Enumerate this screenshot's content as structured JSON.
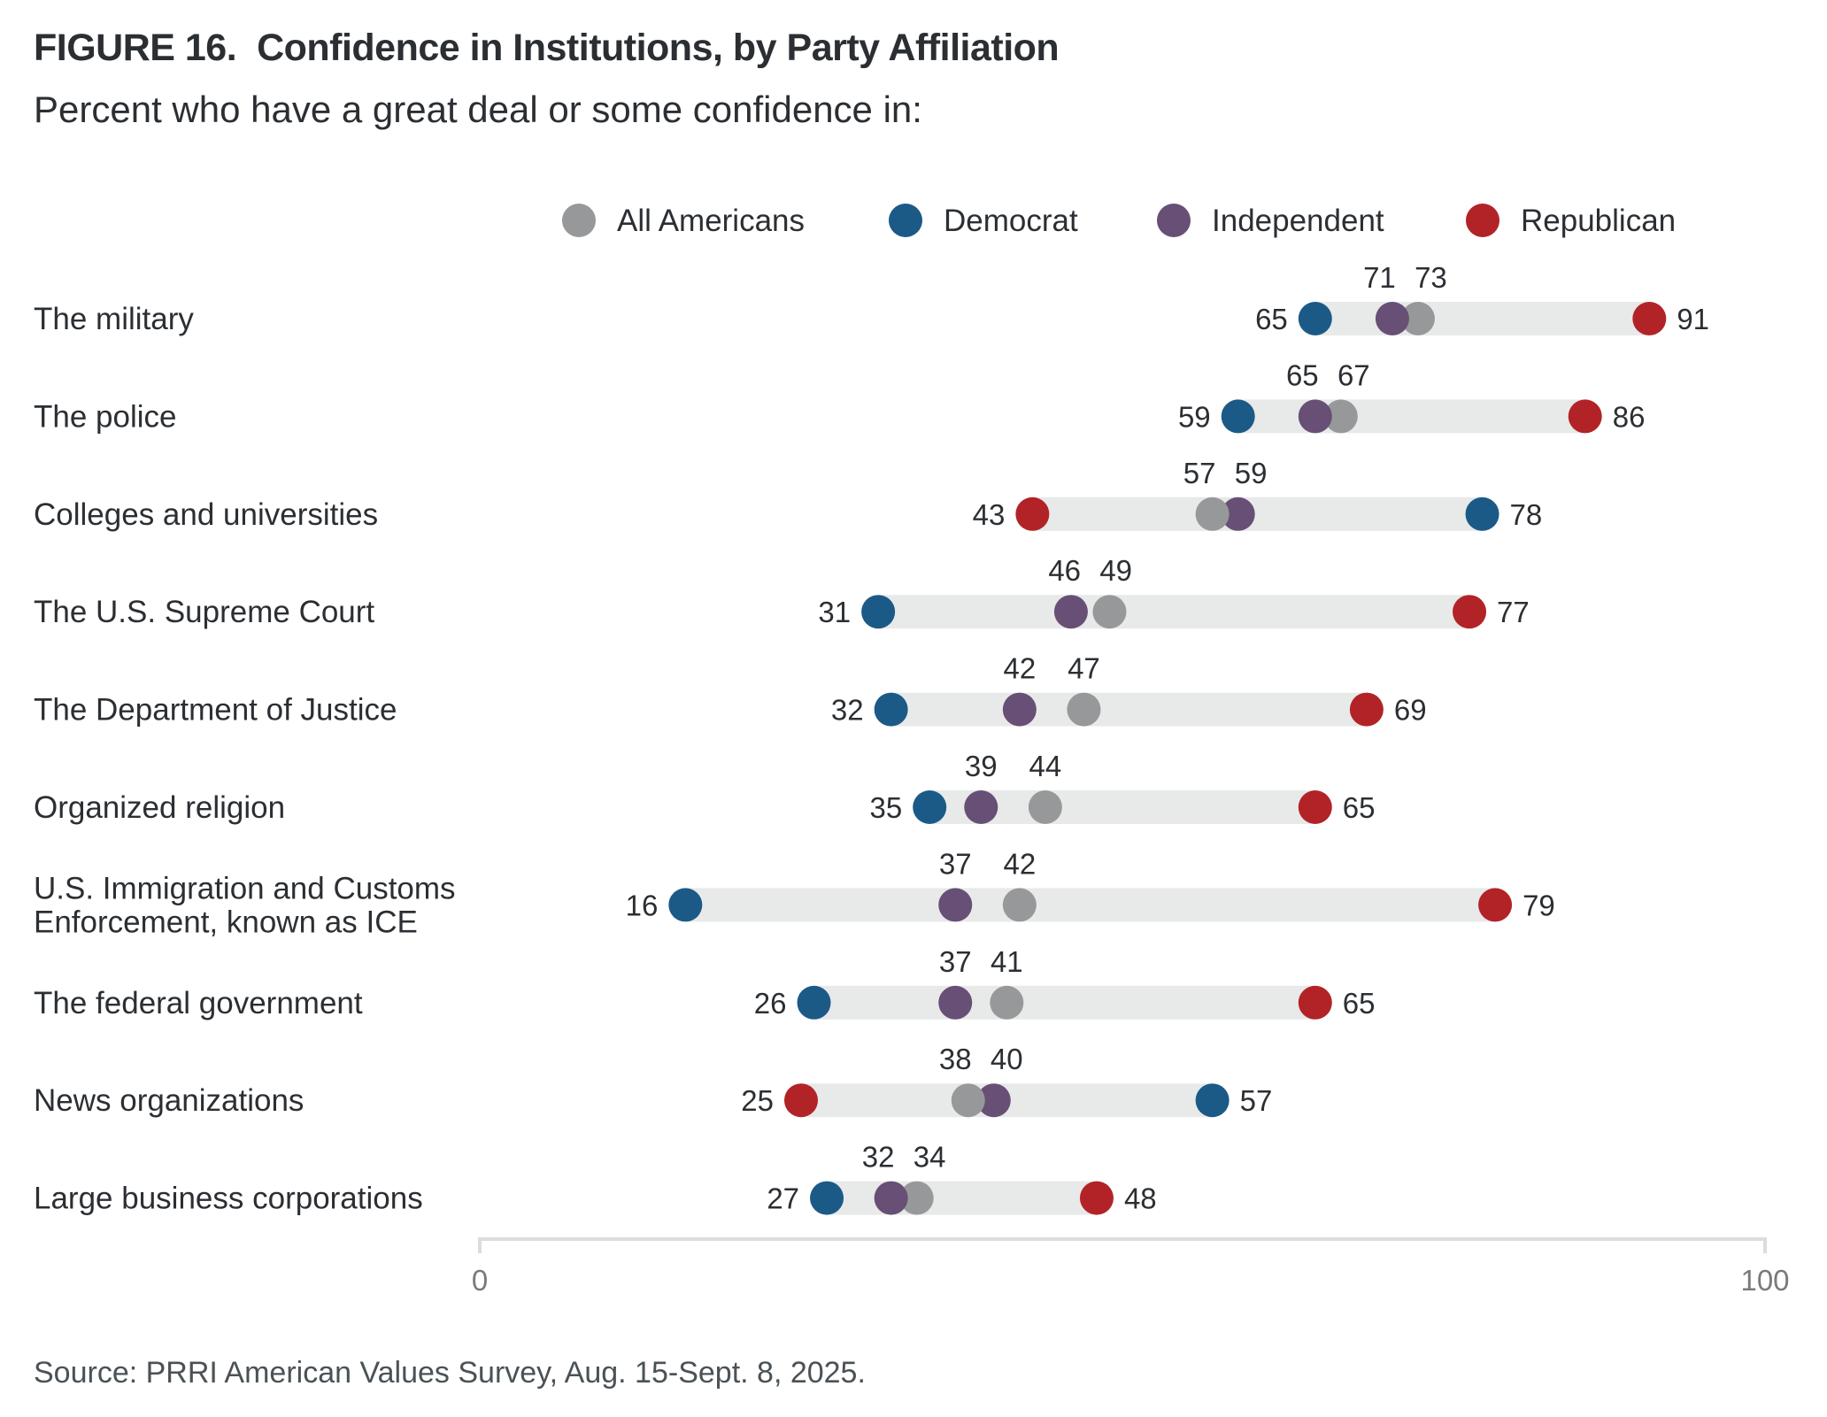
{
  "header": {
    "title": "FIGURE 16.  Confidence in Institutions, by Party Affiliation",
    "subtitle": "Percent who have a great deal or some confidence in:"
  },
  "footer": {
    "source": "Source: PRRI American Values Survey, Aug. 15-Sept. 8, 2025."
  },
  "chart_data": {
    "type": "dot-range",
    "title": "FIGURE 16.  Confidence in Institutions, by Party Affiliation",
    "subtitle": "Percent who have a great deal or some confidence in:",
    "xlim": [
      0,
      100
    ],
    "x_ticks": [
      "0",
      "100"
    ],
    "grid": false,
    "legend_position": "top",
    "series": [
      {
        "key": "all",
        "name": "All Americans",
        "color": "#97989a"
      },
      {
        "key": "dem",
        "name": "Democrat",
        "color": "#1b5a87"
      },
      {
        "key": "ind",
        "name": "Independent",
        "color": "#674f75"
      },
      {
        "key": "rep",
        "name": "Republican",
        "color": "#b22327"
      }
    ],
    "range_bar_color": "#e8e9e9",
    "axis_color": "#dcdcdc",
    "categories": [
      {
        "label": [
          "The military"
        ],
        "all": 73,
        "dem": 65,
        "ind": 71,
        "rep": 91
      },
      {
        "label": [
          "The police"
        ],
        "all": 67,
        "dem": 59,
        "ind": 65,
        "rep": 86
      },
      {
        "label": [
          "Colleges and universities"
        ],
        "all": 57,
        "dem": 78,
        "ind": 59,
        "rep": 43
      },
      {
        "label": [
          "The U.S. Supreme Court"
        ],
        "all": 49,
        "dem": 31,
        "ind": 46,
        "rep": 77
      },
      {
        "label": [
          "The Department of Justice"
        ],
        "all": 47,
        "dem": 32,
        "ind": 42,
        "rep": 69
      },
      {
        "label": [
          "Organized religion"
        ],
        "all": 44,
        "dem": 35,
        "ind": 39,
        "rep": 65
      },
      {
        "label": [
          "U.S. Immigration and Customs",
          "Enforcement, known as ICE"
        ],
        "all": 42,
        "dem": 16,
        "ind": 37,
        "rep": 79
      },
      {
        "label": [
          "The federal government"
        ],
        "all": 41,
        "dem": 26,
        "ind": 37,
        "rep": 65
      },
      {
        "label": [
          "News organizations"
        ],
        "all": 38,
        "dem": 57,
        "ind": 40,
        "rep": 25
      },
      {
        "label": [
          "Large business corporations"
        ],
        "all": 34,
        "dem": 27,
        "ind": 32,
        "rep": 48
      }
    ]
  }
}
